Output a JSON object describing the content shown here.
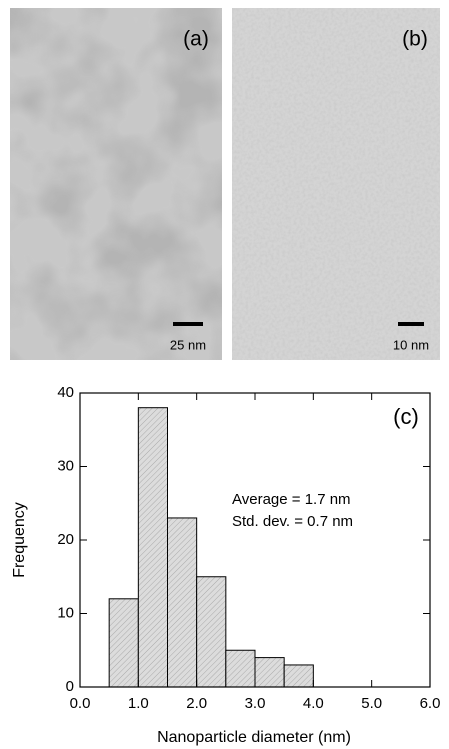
{
  "panels": [
    {
      "label": "(a)",
      "scale_bar": "25 nm"
    },
    {
      "label": "(b)",
      "scale_bar": "10 nm"
    }
  ],
  "chart_data": {
    "type": "histogram",
    "panel_label": "(c)",
    "annotations": [
      "Average = 1.7 nm",
      "Std. dev. = 0.7 nm"
    ],
    "xlabel": "Nanoparticle diameter (nm)",
    "ylabel": "Frequency",
    "bins": [
      0.5,
      1.0,
      1.5,
      2.0,
      2.5,
      3.0,
      3.5,
      4.0
    ],
    "counts": [
      12,
      38,
      23,
      15,
      5,
      4,
      3
    ],
    "color": "#d9d9d9",
    "xlim": [
      0,
      6
    ],
    "xticks": [
      {
        "value": 0,
        "label": "0.0"
      },
      {
        "value": 1,
        "label": "1.0"
      },
      {
        "value": 2,
        "label": "2.0"
      },
      {
        "value": 3,
        "label": "3.0"
      },
      {
        "value": 4,
        "label": "4.0"
      },
      {
        "value": 5,
        "label": "5.0"
      },
      {
        "value": 6,
        "label": "6.0"
      }
    ],
    "ylim": [
      0,
      40
    ],
    "yticks": [
      0,
      10,
      20,
      30,
      40
    ]
  }
}
